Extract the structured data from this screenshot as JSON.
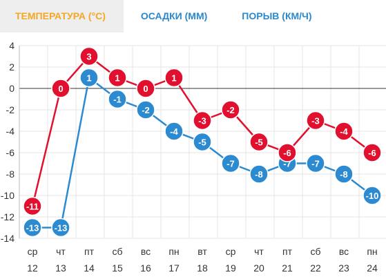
{
  "tabs": [
    {
      "label": "ТЕМПЕРАТУРА (°C)",
      "active": true
    },
    {
      "label": "ОСАДКИ (ММ)",
      "active": false
    },
    {
      "label": "ПОРЫВ (КМ/Ч)",
      "active": false
    }
  ],
  "colors": {
    "active_tab": "#f5a623",
    "tab_text": "#2a88cc",
    "series_max": "#e0102e",
    "series_min": "#2b8ad0",
    "grid": "#e6e6e6"
  },
  "chart_data": {
    "type": "line",
    "categories": [
      {
        "day": "ср",
        "date": "12"
      },
      {
        "day": "чт",
        "date": "13"
      },
      {
        "day": "пт",
        "date": "14"
      },
      {
        "day": "сб",
        "date": "15"
      },
      {
        "day": "вс",
        "date": "16"
      },
      {
        "day": "пн",
        "date": "17"
      },
      {
        "day": "вт",
        "date": "18"
      },
      {
        "day": "ср",
        "date": "19"
      },
      {
        "day": "чт",
        "date": "20"
      },
      {
        "day": "пт",
        "date": "21"
      },
      {
        "day": "сб",
        "date": "22"
      },
      {
        "day": "вс",
        "date": "23"
      },
      {
        "day": "пн",
        "date": "24"
      }
    ],
    "series": [
      {
        "color": "#e0102e",
        "values": [
          -11,
          0,
          3,
          1,
          0,
          1,
          -3,
          -2,
          -5,
          -6,
          -3,
          -4,
          -6
        ]
      },
      {
        "color": "#2b8ad0",
        "values": [
          -13,
          -13,
          1,
          -1,
          -2,
          -4,
          -5,
          -7,
          -8,
          -7,
          -7,
          -8,
          -10
        ]
      }
    ],
    "ylim": [
      -14,
      4
    ],
    "yticks": [
      4,
      2,
      0,
      -2,
      -4,
      -6,
      -8,
      -10,
      -12,
      -14
    ],
    "grid": true
  }
}
